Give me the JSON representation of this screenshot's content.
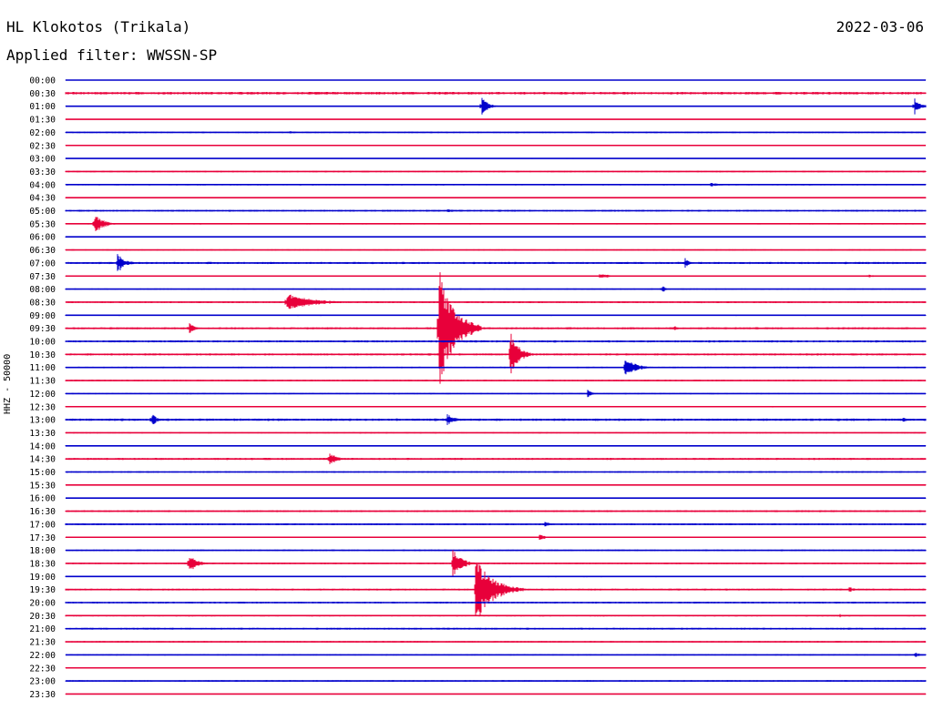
{
  "header": {
    "station": "HL Klokotos (Trikala)",
    "date": "2022-03-06",
    "filter": "Applied filter: WWSSN-SP"
  },
  "chart_data": {
    "type": "line",
    "title": "HL Klokotos (Trikala)",
    "ylabel": "HHZ - 50000",
    "colors": [
      "#0000cc",
      "#e8003a"
    ],
    "rows": [
      "00:00",
      "00:30",
      "01:00",
      "01:30",
      "02:00",
      "02:30",
      "03:00",
      "03:30",
      "04:00",
      "04:30",
      "05:00",
      "05:30",
      "06:00",
      "06:30",
      "07:00",
      "07:30",
      "08:00",
      "08:30",
      "09:00",
      "09:30",
      "10:00",
      "10:30",
      "11:00",
      "11:30",
      "12:00",
      "12:30",
      "13:00",
      "13:30",
      "14:00",
      "14:30",
      "15:00",
      "15:30",
      "16:00",
      "16:30",
      "17:00",
      "17:30",
      "18:00",
      "18:30",
      "19:00",
      "19:30",
      "20:00",
      "20:30",
      "21:00",
      "21:30",
      "22:00",
      "22:30",
      "23:00",
      "23:30"
    ],
    "trace_noise": [
      0.3,
      1.0,
      0.4,
      0.3,
      0.6,
      0.4,
      0.3,
      0.6,
      0.6,
      0.4,
      0.7,
      0.5,
      0.4,
      0.5,
      0.8,
      0.5,
      0.5,
      0.7,
      0.5,
      0.8,
      0.8,
      0.8,
      0.6,
      0.6,
      0.5,
      0.5,
      0.9,
      0.5,
      0.4,
      0.8,
      0.6,
      0.4,
      0.3,
      0.7,
      0.7,
      0.4,
      0.6,
      0.6,
      0.5,
      0.7,
      0.7,
      0.6,
      0.7,
      0.6,
      0.5,
      0.5,
      0.6,
      0.3
    ],
    "events": [
      {
        "row": 2,
        "minute": 14.5,
        "amplitude": 12,
        "duration": 0.6
      },
      {
        "row": 2,
        "minute": 29.6,
        "amplitude": 10,
        "duration": 0.6
      },
      {
        "row": 4,
        "minute": 7.8,
        "amplitude": 2,
        "duration": 0.5
      },
      {
        "row": 8,
        "minute": 22.5,
        "amplitude": 2,
        "duration": 1.2
      },
      {
        "row": 10,
        "minute": 13.3,
        "amplitude": 2,
        "duration": 1.0
      },
      {
        "row": 11,
        "minute": 1.0,
        "amplitude": 11,
        "duration": 0.9
      },
      {
        "row": 14,
        "minute": 1.8,
        "amplitude": 11,
        "duration": 0.8
      },
      {
        "row": 14,
        "minute": 21.6,
        "amplitude": 6,
        "duration": 0.4
      },
      {
        "row": 15,
        "minute": 18.6,
        "amplitude": 3,
        "duration": 1.2
      },
      {
        "row": 15,
        "minute": 28.0,
        "amplitude": 3,
        "duration": 0.4
      },
      {
        "row": 16,
        "minute": 20.8,
        "amplitude": 5,
        "duration": 0.3
      },
      {
        "row": 17,
        "minute": 7.7,
        "amplitude": 10,
        "duration": 2.5
      },
      {
        "row": 19,
        "minute": 4.3,
        "amplitude": 7,
        "duration": 0.5
      },
      {
        "row": 19,
        "minute": 13.0,
        "amplitude": 70,
        "duration": 1.5
      },
      {
        "row": 19,
        "minute": 21.2,
        "amplitude": 4,
        "duration": 0.4
      },
      {
        "row": 21,
        "minute": 15.5,
        "amplitude": 27,
        "duration": 0.8
      },
      {
        "row": 22,
        "minute": 19.5,
        "amplitude": 11,
        "duration": 1.1
      },
      {
        "row": 24,
        "minute": 18.2,
        "amplitude": 5,
        "duration": 0.4
      },
      {
        "row": 26,
        "minute": 3.0,
        "amplitude": 8,
        "duration": 0.5
      },
      {
        "row": 26,
        "minute": 13.3,
        "amplitude": 7,
        "duration": 0.7
      },
      {
        "row": 26,
        "minute": 29.2,
        "amplitude": 3,
        "duration": 0.4
      },
      {
        "row": 29,
        "minute": 9.2,
        "amplitude": 8,
        "duration": 0.7
      },
      {
        "row": 34,
        "minute": 16.7,
        "amplitude": 3,
        "duration": 0.6
      },
      {
        "row": 35,
        "minute": 16.5,
        "amplitude": 4,
        "duration": 0.6
      },
      {
        "row": 37,
        "minute": 4.3,
        "amplitude": 10,
        "duration": 0.8
      },
      {
        "row": 37,
        "minute": 13.5,
        "amplitude": 16,
        "duration": 0.9
      },
      {
        "row": 39,
        "minute": 14.3,
        "amplitude": 35,
        "duration": 1.7
      },
      {
        "row": 39,
        "minute": 27.3,
        "amplitude": 4,
        "duration": 0.6
      },
      {
        "row": 41,
        "minute": 27.0,
        "amplitude": 2,
        "duration": 0.4
      },
      {
        "row": 44,
        "minute": 29.6,
        "amplitude": 3,
        "duration": 0.6
      }
    ]
  }
}
